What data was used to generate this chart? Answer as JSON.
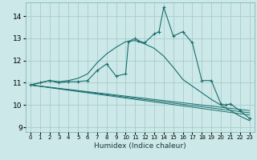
{
  "xlabel": "Humidex (Indice chaleur)",
  "bg_color": "#cce8e8",
  "grid_color": "#aacccc",
  "line_color": "#1a6e6e",
  "xlim": [
    -0.5,
    23.5
  ],
  "ylim": [
    8.8,
    14.6
  ],
  "yticks": [
    9,
    10,
    11,
    12,
    13,
    14
  ],
  "xticks": [
    0,
    1,
    2,
    3,
    4,
    5,
    6,
    7,
    8,
    9,
    10,
    11,
    12,
    13,
    14,
    15,
    16,
    17,
    18,
    19,
    20,
    21,
    22,
    23
  ],
  "curve_main_x": [
    0,
    1,
    2,
    3,
    4,
    5,
    6,
    7,
    8,
    9,
    10,
    10.3,
    11,
    11.3,
    12,
    13,
    13.5,
    14,
    15,
    16,
    17,
    18,
    19,
    20,
    20.5,
    21,
    22,
    23
  ],
  "curve_main_y": [
    10.9,
    11.0,
    11.1,
    11.0,
    11.05,
    11.05,
    11.1,
    11.55,
    11.85,
    11.3,
    11.4,
    12.85,
    13.0,
    12.9,
    12.8,
    13.2,
    13.3,
    14.4,
    13.1,
    13.3,
    12.8,
    11.1,
    11.1,
    10.05,
    10.0,
    10.05,
    9.75,
    9.4
  ],
  "curve_smooth_x": [
    0,
    1,
    2,
    3,
    4,
    5,
    6,
    7,
    8,
    9,
    10,
    11,
    12,
    13,
    14,
    15,
    16,
    17,
    18,
    19,
    20,
    21,
    22,
    23
  ],
  "curve_smooth_y": [
    10.9,
    11.0,
    11.1,
    11.05,
    11.1,
    11.2,
    11.4,
    11.9,
    12.3,
    12.6,
    12.85,
    12.9,
    12.75,
    12.55,
    12.2,
    11.7,
    11.15,
    10.85,
    10.55,
    10.25,
    10.0,
    9.75,
    9.5,
    9.3
  ],
  "line1": [
    [
      0,
      10.9
    ],
    [
      23,
      9.55
    ]
  ],
  "line2": [
    [
      0,
      10.9
    ],
    [
      23,
      9.65
    ]
  ],
  "line3": [
    [
      0,
      10.9
    ],
    [
      23,
      9.75
    ]
  ]
}
